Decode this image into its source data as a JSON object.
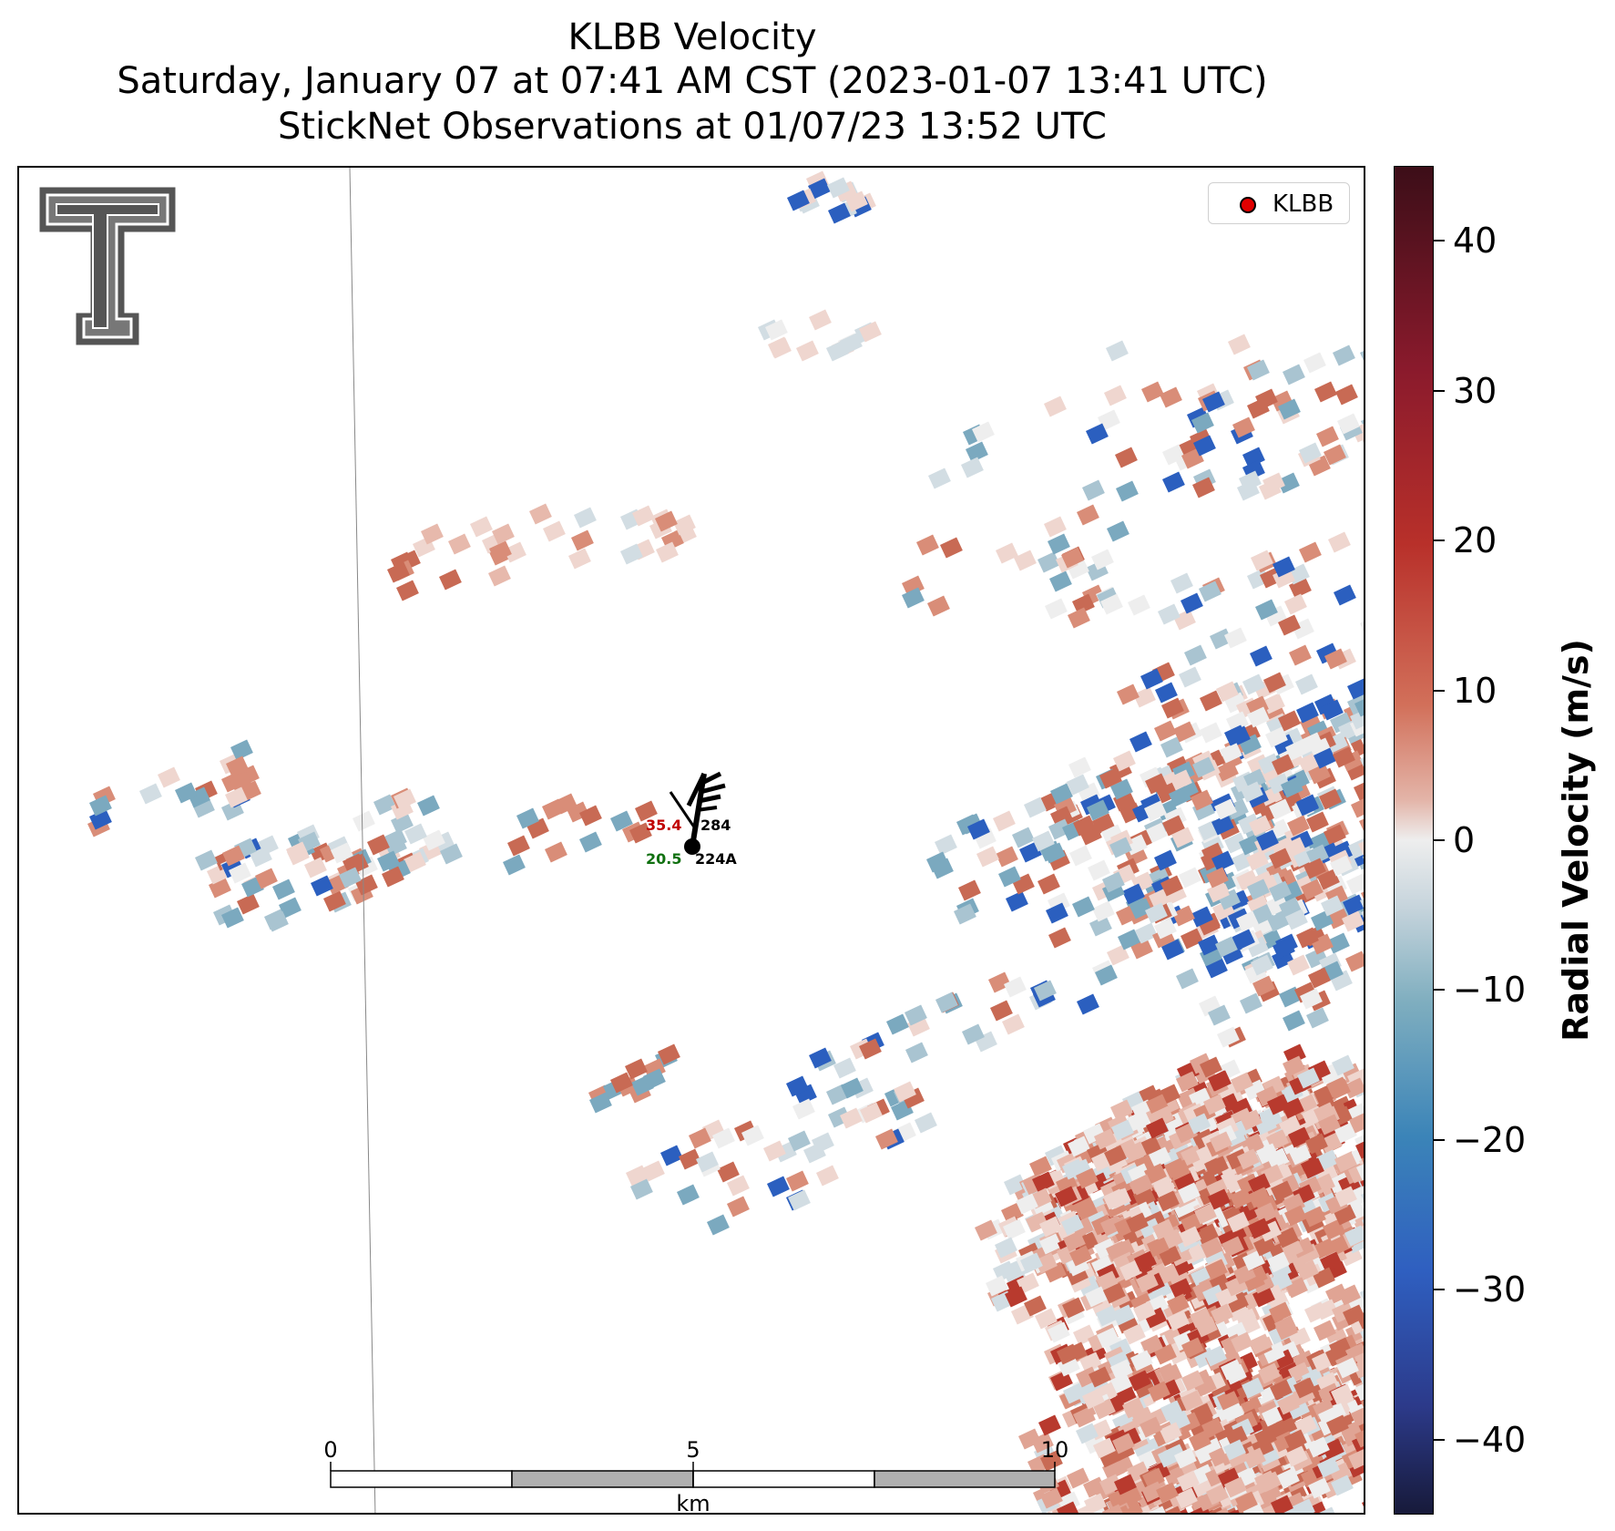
{
  "title": {
    "line1": "KLBB Velocity",
    "line2": "Saturday, January 07 at 07:41 AM CST (2023-01-07 13:41 UTC)",
    "line3": "StickNet Observations at 01/07/23 13:52 UTC"
  },
  "legend": {
    "label": "KLBB",
    "marker_color": "#e00000"
  },
  "logo": {
    "name": "texas-tech-double-t"
  },
  "colorbar": {
    "title": "Radial Velocity (m/s)",
    "range": [
      -45,
      45
    ],
    "ticks": [
      "40",
      "30",
      "20",
      "10",
      "0",
      "−10",
      "−20",
      "−30",
      "−40"
    ],
    "tick_values": [
      40,
      30,
      20,
      10,
      0,
      -10,
      -20,
      -30,
      -40
    ]
  },
  "scale_bar": {
    "labels": [
      "0",
      "5",
      "10"
    ],
    "unit": "km"
  },
  "station": {
    "temperature": "35.4",
    "dewpoint": "20.5",
    "pressure_code": "284",
    "station_id": "224A",
    "temperature_color": "#c00000",
    "dewpoint_color": "#107010"
  }
}
